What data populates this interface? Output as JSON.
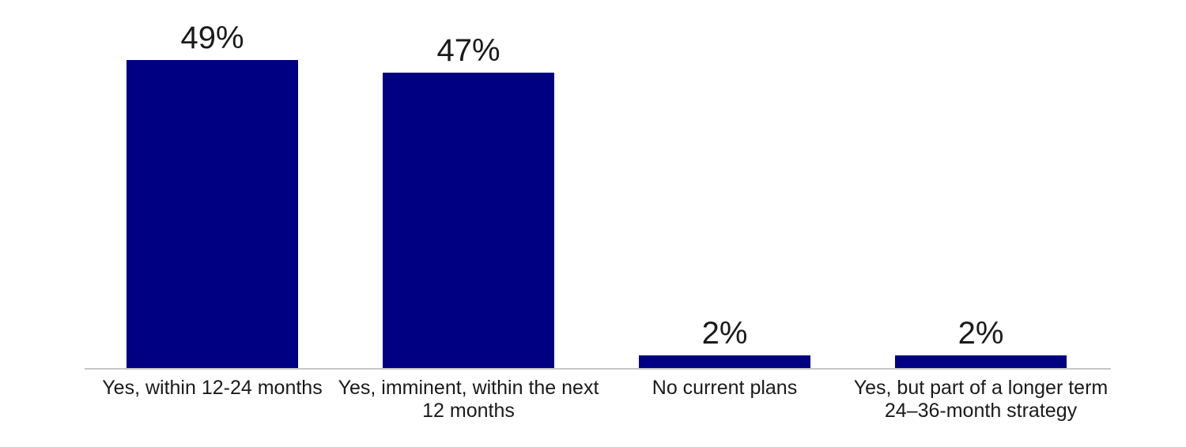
{
  "chart_data": {
    "type": "bar",
    "title": "",
    "orientation": "vertical",
    "categories": [
      "Yes, within 12-24 months",
      "Yes, imminent, within the next 12 months",
      "No current plans",
      "Yes, but part of a longer term 24–36-month strategy"
    ],
    "category_lines": [
      [
        "Yes, within 12-24 months"
      ],
      [
        "Yes, imminent, within the next",
        "12 months"
      ],
      [
        "No current plans"
      ],
      [
        "Yes, but part of a longer term",
        "24–36-month strategy"
      ]
    ],
    "values": [
      49,
      47,
      2,
      2
    ],
    "data_labels": [
      "49%",
      "47%",
      "2%",
      "2%"
    ],
    "unit": "%",
    "ylim": [
      0,
      52
    ],
    "grid": false,
    "legend": false,
    "colors": {
      "bar": "#000082",
      "axis_line": "#C6C6C6",
      "text": "#1A1A1A",
      "background": "#FFFFFF"
    }
  }
}
